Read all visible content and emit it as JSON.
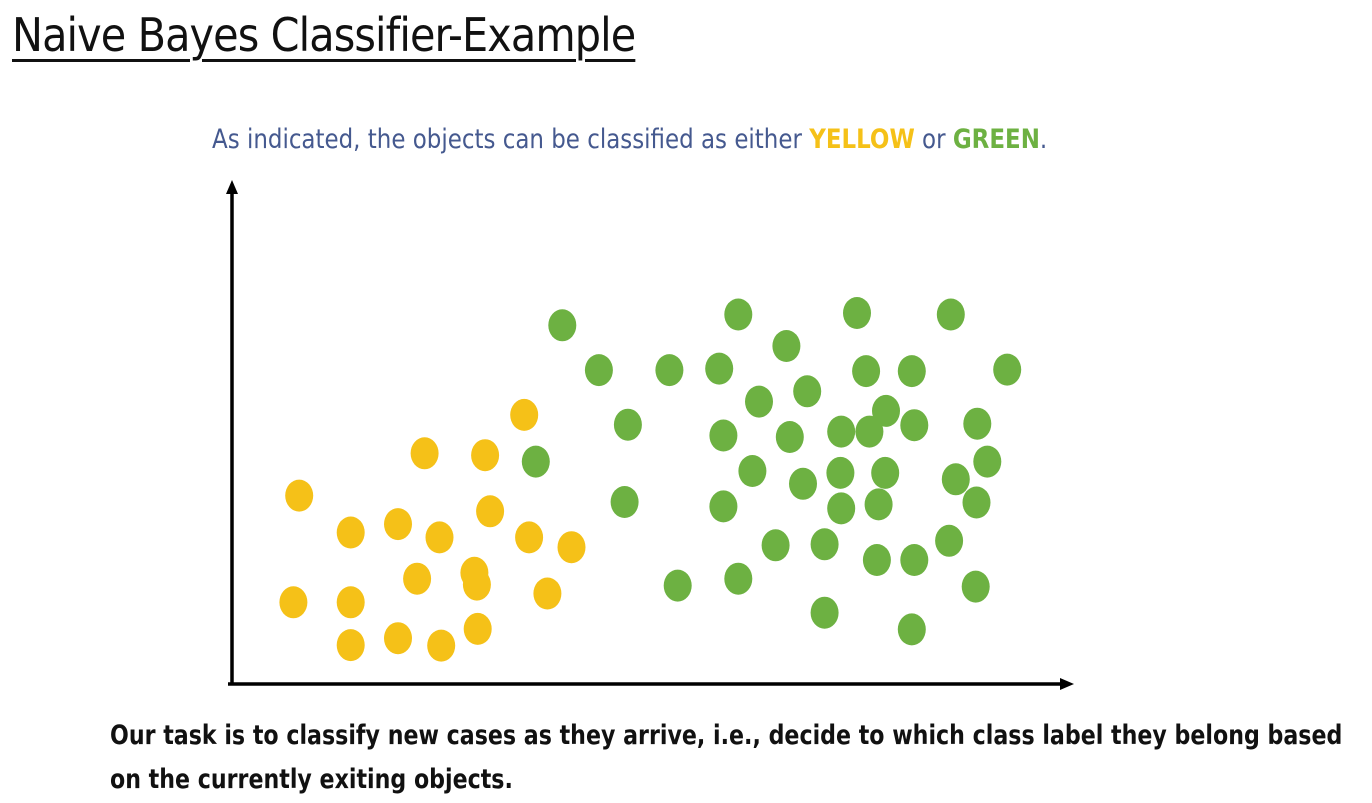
{
  "slide": {
    "title": "Naive Bayes Classifier-Example",
    "caption": {
      "prefix": "As indicated, the objects can be classified as either ",
      "yellow_word": "YELLOW",
      "middle": " or ",
      "green_word": "GREEN",
      "suffix": "."
    },
    "task_lines": [
      "Our task is to classify new cases as they arrive, i.e., decide to which class label they belong based",
      "on the currently exiting objects."
    ]
  },
  "colors": {
    "yellow": "#f5c118",
    "green": "#6db142",
    "caption_text": "#45598f",
    "axis": "#000000"
  },
  "chart_data": {
    "type": "scatter",
    "title": "",
    "xlabel": "",
    "ylabel": "",
    "xlim": [
      0,
      100
    ],
    "ylim": [
      0,
      100
    ],
    "grid": false,
    "series": [
      {
        "color": "yellow",
        "points": [
          [
            35.2,
            54.7
          ],
          [
            23.2,
            46.9
          ],
          [
            30.5,
            46.5
          ],
          [
            8.1,
            38.3
          ],
          [
            14.3,
            30.8
          ],
          [
            20.0,
            32.5
          ],
          [
            25.0,
            29.8
          ],
          [
            31.1,
            35.1
          ],
          [
            35.8,
            29.8
          ],
          [
            40.9,
            27.8
          ],
          [
            22.3,
            21.4
          ],
          [
            29.5,
            20.2
          ],
          [
            29.2,
            22.6
          ],
          [
            7.4,
            16.6
          ],
          [
            14.3,
            16.6
          ],
          [
            38.0,
            18.4
          ],
          [
            14.3,
            7.9
          ],
          [
            20.0,
            9.3
          ],
          [
            25.2,
            7.8
          ],
          [
            29.6,
            11.2
          ]
        ]
      },
      {
        "color": "green",
        "points": [
          [
            39.8,
            72.9
          ],
          [
            44.2,
            63.8
          ],
          [
            52.7,
            63.8
          ],
          [
            58.7,
            64.1
          ],
          [
            61.0,
            75.1
          ],
          [
            66.8,
            68.7
          ],
          [
            75.3,
            75.4
          ],
          [
            76.4,
            63.6
          ],
          [
            69.3,
            59.5
          ],
          [
            63.5,
            57.4
          ],
          [
            81.9,
            63.6
          ],
          [
            86.6,
            75.1
          ],
          [
            93.4,
            63.9
          ],
          [
            78.8,
            55.5
          ],
          [
            82.2,
            52.6
          ],
          [
            47.7,
            52.7
          ],
          [
            59.2,
            50.5
          ],
          [
            67.2,
            50.2
          ],
          [
            73.4,
            51.3
          ],
          [
            76.8,
            51.3
          ],
          [
            89.8,
            52.9
          ],
          [
            91.0,
            45.2
          ],
          [
            62.7,
            43.3
          ],
          [
            73.3,
            42.9
          ],
          [
            68.8,
            40.7
          ],
          [
            78.7,
            42.9
          ],
          [
            87.2,
            41.6
          ],
          [
            36.6,
            45.2
          ],
          [
            47.3,
            37.0
          ],
          [
            59.2,
            36.1
          ],
          [
            73.4,
            35.7
          ],
          [
            77.9,
            36.5
          ],
          [
            89.7,
            36.9
          ],
          [
            86.4,
            29.1
          ],
          [
            71.4,
            28.4
          ],
          [
            65.5,
            28.2
          ],
          [
            77.7,
            25.2
          ],
          [
            82.2,
            25.2
          ],
          [
            53.7,
            20.0
          ],
          [
            61.0,
            21.4
          ],
          [
            71.4,
            14.5
          ],
          [
            81.9,
            11.1
          ],
          [
            89.6,
            19.8
          ]
        ]
      }
    ]
  }
}
